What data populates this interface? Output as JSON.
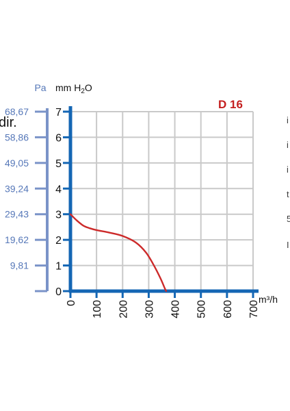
{
  "chart_data": {
    "type": "line",
    "title": "D 16",
    "xlabel": "m³/h",
    "ylabel": "mm H2O",
    "secondary_ylabel": "Pa",
    "xlim": [
      0,
      700
    ],
    "ylim": [
      0,
      7
    ],
    "grid": true,
    "x_ticks": [
      "0",
      "100",
      "200",
      "300",
      "400",
      "500",
      "600",
      "700"
    ],
    "y_ticks": [
      "0",
      "1",
      "2",
      "3",
      "4",
      "5",
      "6",
      "7"
    ],
    "secondary_y_ticks": [
      "9,81",
      "19,62",
      "29,43",
      "39,24",
      "49,05",
      "58,86",
      "68,67"
    ],
    "series": [
      {
        "x": [
          0,
          25,
          50,
          75,
          100,
          150,
          200,
          250,
          290,
          320,
          345,
          362,
          367
        ],
        "y": [
          3.0,
          2.75,
          2.55,
          2.45,
          2.38,
          2.28,
          2.15,
          1.9,
          1.5,
          1.0,
          0.5,
          0.1,
          0.0
        ]
      }
    ]
  },
  "side_text": {
    "left_fragment": "dir.",
    "right_fragments": [
      "i",
      "i",
      "i",
      "t",
      "5",
      "I"
    ]
  },
  "colors": {
    "axis": "#1466b4",
    "grid": "#c9c9c9",
    "curve": "#cc2a2a",
    "title": "#c41f1f",
    "secondary_axis": "#7a93c8",
    "secondary_text": "#5577b8",
    "text": "#111111"
  }
}
